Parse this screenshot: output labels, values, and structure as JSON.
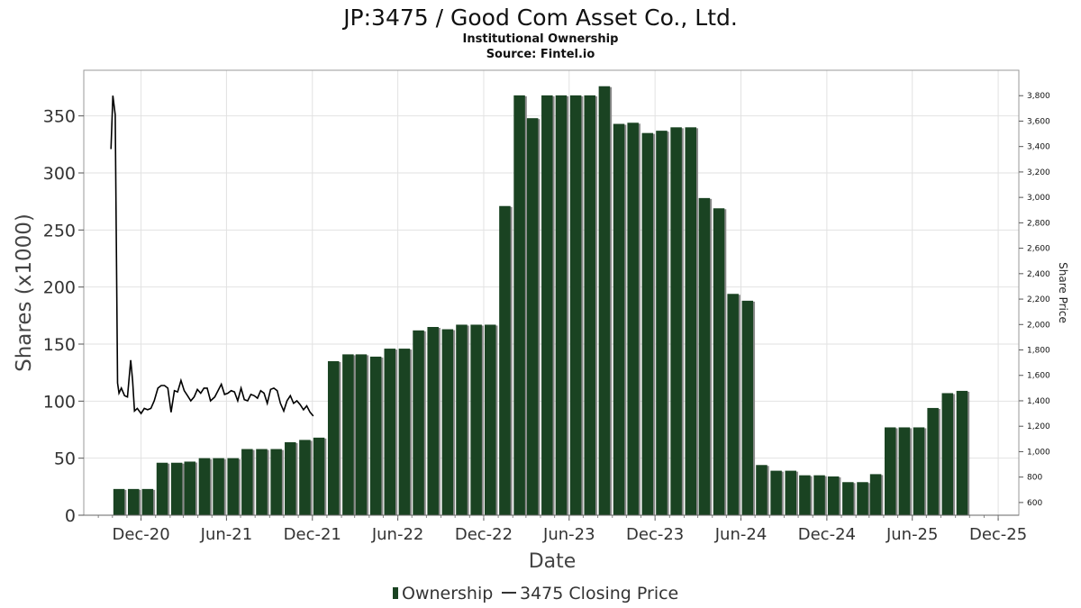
{
  "chart_data": {
    "type": "bar",
    "title": "JP:3475 / Good Com Asset Co., Ltd.",
    "subtitle": "Institutional Ownership",
    "source": "Source: Fintel.io",
    "xlabel": "Date",
    "ylabel": "Shares (x1000)",
    "y2label": "Share Price",
    "ylim": [
      0,
      390
    ],
    "y2lim": [
      500,
      4000
    ],
    "y_ticks": [
      0,
      50,
      100,
      150,
      200,
      250,
      300,
      350
    ],
    "y2_ticks": [
      "600",
      "800",
      "1,000",
      "1,200",
      "1,400",
      "1,600",
      "1,800",
      "2,000",
      "2,200",
      "2,400",
      "2,600",
      "2,800",
      "3,000",
      "3,200",
      "3,400",
      "3,600",
      "3,800"
    ],
    "x_tick_labels": [
      "Dec-20",
      "Jun-21",
      "Dec-21",
      "Jun-22",
      "Dec-22",
      "Jun-23",
      "Dec-23",
      "Jun-24",
      "Dec-24",
      "Jun-25",
      "Dec-25"
    ],
    "grid": true,
    "legend_position": "bottom",
    "colors": {
      "bar": "#1a4322",
      "bar_shadow": "#8a8a8a",
      "line": "#000000",
      "grid": "#e2e2e2"
    },
    "series": [
      {
        "name": "Ownership",
        "kind": "bar",
        "x": [
          "2020-10-15",
          "2020-11-15",
          "2020-12-15",
          "2021-01-15",
          "2021-02-15",
          "2021-03-15",
          "2021-04-15",
          "2021-05-15",
          "2021-06-15",
          "2021-07-15",
          "2021-08-15",
          "2021-09-15",
          "2021-10-15",
          "2021-11-15",
          "2021-12-15",
          "2022-01-15",
          "2022-02-15",
          "2022-03-15",
          "2022-04-15",
          "2022-05-15",
          "2022-06-15",
          "2022-07-15",
          "2022-08-15",
          "2022-09-15",
          "2022-10-15",
          "2022-11-15",
          "2022-12-15",
          "2023-01-15",
          "2023-02-15",
          "2023-03-15",
          "2023-04-15",
          "2023-05-15",
          "2023-06-15",
          "2023-07-15",
          "2023-08-15",
          "2023-09-15",
          "2023-10-15",
          "2023-11-15",
          "2023-12-15",
          "2024-01-15",
          "2024-02-15",
          "2024-03-15",
          "2024-04-15",
          "2024-05-15",
          "2024-06-15",
          "2024-07-15",
          "2024-08-15",
          "2024-09-15",
          "2024-10-15",
          "2024-11-15",
          "2024-12-15",
          "2025-01-15",
          "2025-02-15",
          "2025-03-15",
          "2025-04-15",
          "2025-05-15",
          "2025-06-15",
          "2025-07-15",
          "2025-08-15",
          "2025-09-15"
        ],
        "values": [
          23,
          23,
          23,
          46,
          46,
          47,
          50,
          50,
          50,
          58,
          58,
          58,
          64,
          66,
          68,
          135,
          141,
          141,
          139,
          146,
          146,
          162,
          165,
          163,
          167,
          167,
          167,
          271,
          368,
          348,
          368,
          368,
          368,
          368,
          376,
          343,
          344,
          335,
          337,
          340,
          340,
          278,
          269,
          194,
          188,
          44,
          39,
          39,
          35,
          35,
          34,
          29,
          29,
          36,
          77,
          77,
          77,
          94,
          107,
          109
        ]
      },
      {
        "name": "3475 Closing Price",
        "kind": "line",
        "x": [
          "2020-09-28",
          "2020-10-02",
          "2020-10-07",
          "2020-10-12",
          "2020-10-15",
          "2020-10-20",
          "2020-10-27",
          "2020-11-02",
          "2020-11-09",
          "2020-11-13",
          "2020-11-17",
          "2020-11-23",
          "2020-12-01",
          "2020-12-08",
          "2020-12-15",
          "2020-12-22",
          "2020-12-29",
          "2021-01-06",
          "2021-01-13",
          "2021-01-20",
          "2021-01-27",
          "2021-02-03",
          "2021-02-10",
          "2021-02-17",
          "2021-02-24",
          "2021-03-03",
          "2021-03-10",
          "2021-03-17",
          "2021-03-24",
          "2021-03-31",
          "2021-04-07",
          "2021-04-14",
          "2021-04-21",
          "2021-04-28",
          "2021-05-07",
          "2021-05-14",
          "2021-05-21",
          "2021-05-28",
          "2021-06-04",
          "2021-06-11",
          "2021-06-18",
          "2021-06-25",
          "2021-07-02",
          "2021-07-09",
          "2021-07-16",
          "2021-07-23",
          "2021-07-30",
          "2021-08-06",
          "2021-08-13",
          "2021-08-20",
          "2021-08-27",
          "2021-09-03",
          "2021-09-10",
          "2021-09-17",
          "2021-09-24",
          "2021-10-01",
          "2021-10-08",
          "2021-10-15",
          "2021-10-22",
          "2021-10-29",
          "2021-11-05",
          "2021-11-12",
          "2021-11-19",
          "2021-11-26",
          "2021-12-03"
        ],
        "values": [
          3380,
          3800,
          3650,
          1540,
          1460,
          1500,
          1440,
          1430,
          1720,
          1560,
          1320,
          1340,
          1300,
          1340,
          1330,
          1340,
          1400,
          1500,
          1520,
          1520,
          1500,
          1310,
          1480,
          1470,
          1560,
          1480,
          1440,
          1400,
          1430,
          1490,
          1460,
          1500,
          1500,
          1400,
          1430,
          1480,
          1530,
          1450,
          1460,
          1480,
          1470,
          1400,
          1500,
          1410,
          1400,
          1450,
          1440,
          1420,
          1480,
          1460,
          1380,
          1490,
          1500,
          1480,
          1380,
          1320,
          1400,
          1440,
          1380,
          1400,
          1370,
          1330,
          1360,
          1310,
          1280
        ]
      }
    ]
  },
  "legend": {
    "ownership_label": "Ownership",
    "price_label": "3475 Closing Price"
  }
}
